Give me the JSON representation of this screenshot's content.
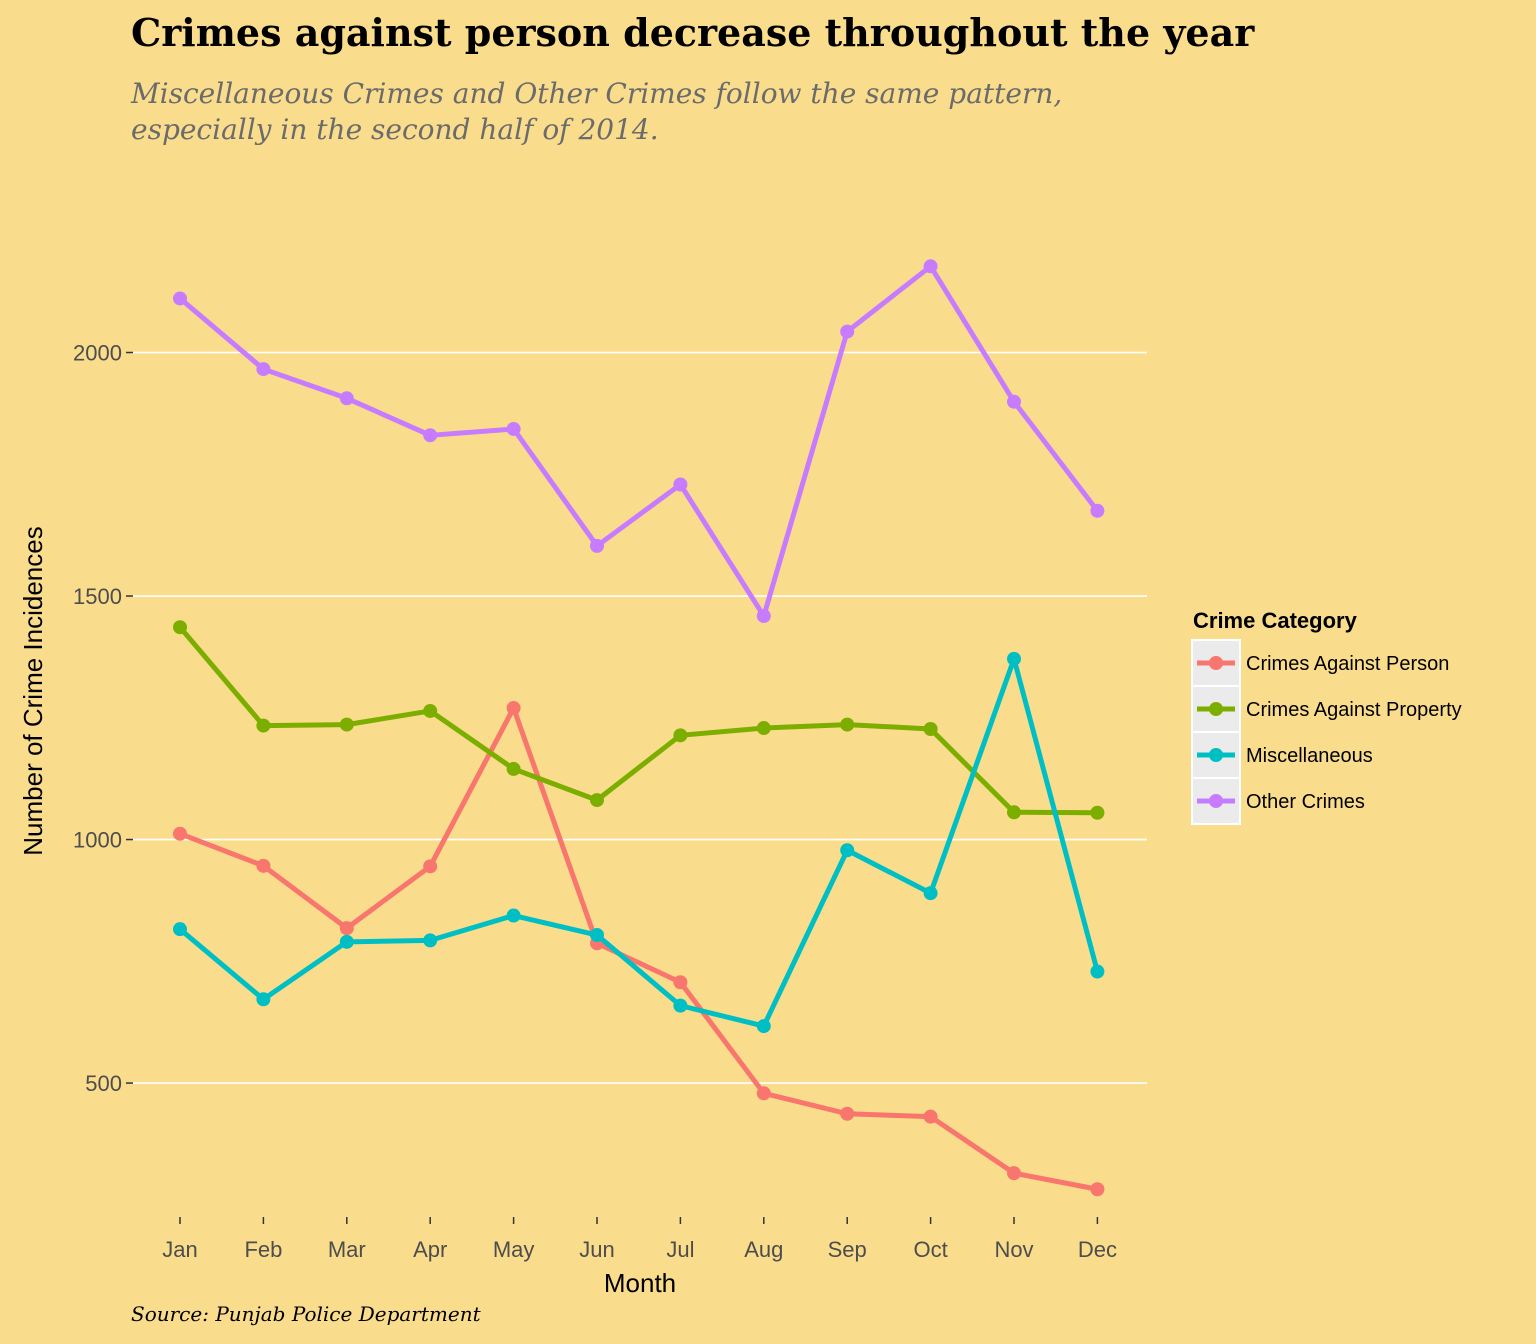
{
  "title": "Crimes against person decrease throughout the year",
  "subtitle_line1": "Miscellaneous Crimes and Other Crimes follow the same pattern,",
  "subtitle_line2": "especially in the second half of 2014.",
  "caption": "Source: Punjab Police Department",
  "chart_data": {
    "type": "line",
    "title": "Crimes against person decrease throughout the year",
    "xlabel": "Month",
    "ylabel": "Number of Crime Incidences",
    "categories": [
      "Jan",
      "Feb",
      "Mar",
      "Apr",
      "May",
      "Jun",
      "Jul",
      "Aug",
      "Sep",
      "Oct",
      "Nov",
      "Dec"
    ],
    "yticks": [
      500,
      1000,
      1500,
      2000
    ],
    "ylim": [
      225,
      2385
    ],
    "grid": true,
    "legend_title": "Crime Category",
    "legend_position": "right",
    "series": [
      {
        "name": "Crimes Against Person",
        "color": "#f8766d",
        "values": [
          1012,
          946,
          818,
          945,
          1270,
          787,
          707,
          479,
          437,
          431,
          315,
          282
        ]
      },
      {
        "name": "Crimes Against Property",
        "color": "#7cae00",
        "values": [
          1436,
          1234,
          1236,
          1264,
          1145,
          1081,
          1214,
          1229,
          1236,
          1227,
          1056,
          1055
        ]
      },
      {
        "name": "Miscellaneous",
        "color": "#00bfc4",
        "values": [
          816,
          672,
          790,
          793,
          844,
          804,
          659,
          617,
          978,
          890,
          1371,
          729
        ]
      },
      {
        "name": "Other Crimes",
        "color": "#c77cff",
        "values": [
          2111,
          1966,
          1906,
          1830,
          1843,
          1603,
          1729,
          1459,
          2043,
          2177,
          1899,
          1675
        ]
      }
    ]
  }
}
